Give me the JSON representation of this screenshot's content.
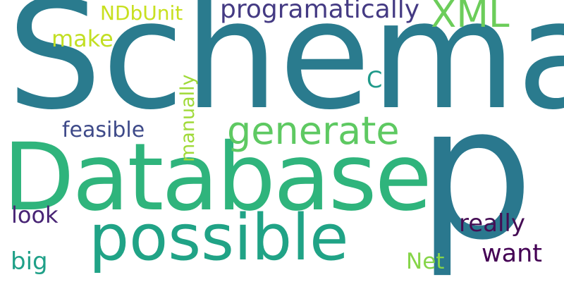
{
  "words": {
    "schema": {
      "text": "Schema",
      "color": "#2a7b8e"
    },
    "p": {
      "text": "p",
      "color": "#2a788e"
    },
    "database": {
      "text": "Database",
      "color": "#2fb47c"
    },
    "possible": {
      "text": "possible",
      "color": "#20a386"
    },
    "generate": {
      "text": "generate",
      "color": "#5ec962"
    },
    "xml": {
      "text": "XML",
      "color": "#6ccd5a"
    },
    "programatically": {
      "text": "programatically",
      "color": "#443a83"
    },
    "ndbunit": {
      "text": "NDbUnit",
      "color": "#c8e020"
    },
    "make": {
      "text": "make",
      "color": "#c2df23"
    },
    "manually": {
      "text": "manually",
      "color": "#a0da39"
    },
    "c": {
      "text": "C",
      "color": "#1f9a8a"
    },
    "feasible": {
      "text": "feasible",
      "color": "#3e4a89"
    },
    "look": {
      "text": "look",
      "color": "#482475"
    },
    "really": {
      "text": "really",
      "color": "#450d54"
    },
    "want": {
      "text": "want",
      "color": "#440154"
    },
    "net": {
      "text": "Net",
      "color": "#86d549"
    },
    "big": {
      "text": "big",
      "color": "#1fa088"
    }
  }
}
